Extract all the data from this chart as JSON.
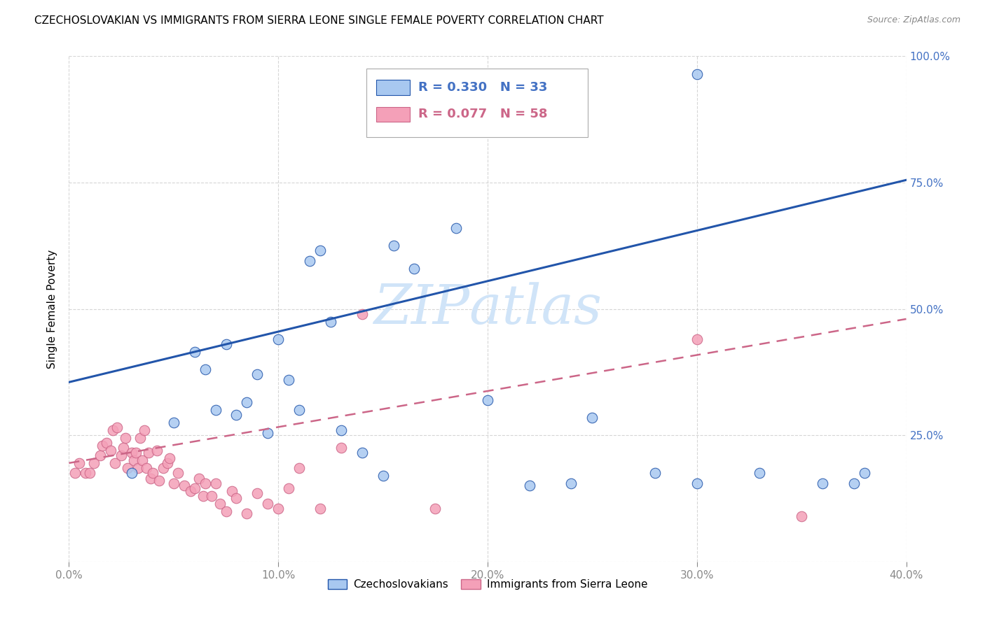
{
  "title": "CZECHOSLOVAKIAN VS IMMIGRANTS FROM SIERRA LEONE SINGLE FEMALE POVERTY CORRELATION CHART",
  "source": "Source: ZipAtlas.com",
  "ylabel": "Single Female Poverty",
  "xlim": [
    0.0,
    0.4
  ],
  "ylim": [
    0.0,
    1.0
  ],
  "xticks": [
    0.0,
    0.1,
    0.2,
    0.3,
    0.4
  ],
  "xtick_labels": [
    "0.0%",
    "10.0%",
    "20.0%",
    "30.0%",
    "40.0%"
  ],
  "yticks": [
    0.0,
    0.25,
    0.5,
    0.75,
    1.0
  ],
  "ytick_labels": [
    "",
    "25.0%",
    "50.0%",
    "75.0%",
    "100.0%"
  ],
  "legend_blue_R": "R = 0.330",
  "legend_blue_N": "N = 33",
  "legend_pink_R": "R = 0.077",
  "legend_pink_N": "N = 58",
  "blue_color": "#A8C8F0",
  "pink_color": "#F4A0B8",
  "line_blue": "#2255AA",
  "line_pink": "#CC6688",
  "watermark_color": "#D0E4F8",
  "legend_labels": [
    "Czechoslovakians",
    "Immigrants from Sierra Leone"
  ],
  "title_fontsize": 11,
  "axis_color": "#4472C4",
  "blue_trendline_x": [
    0.0,
    0.4
  ],
  "blue_trendline_y": [
    0.355,
    0.755
  ],
  "pink_trendline_x": [
    0.0,
    0.4
  ],
  "pink_trendline_y": [
    0.195,
    0.48
  ],
  "blue_x": [
    0.03,
    0.05,
    0.06,
    0.065,
    0.07,
    0.075,
    0.08,
    0.085,
    0.09,
    0.095,
    0.1,
    0.105,
    0.11,
    0.115,
    0.12,
    0.125,
    0.13,
    0.14,
    0.15,
    0.155,
    0.165,
    0.185,
    0.2,
    0.22,
    0.24,
    0.25,
    0.28,
    0.3,
    0.3,
    0.33,
    0.36,
    0.375,
    0.38
  ],
  "blue_y": [
    0.175,
    0.275,
    0.415,
    0.38,
    0.3,
    0.43,
    0.29,
    0.315,
    0.37,
    0.255,
    0.44,
    0.36,
    0.3,
    0.595,
    0.615,
    0.475,
    0.26,
    0.215,
    0.17,
    0.625,
    0.58,
    0.66,
    0.32,
    0.15,
    0.155,
    0.285,
    0.175,
    0.965,
    0.155,
    0.175,
    0.155,
    0.155,
    0.175
  ],
  "pink_x": [
    0.003,
    0.005,
    0.008,
    0.01,
    0.012,
    0.015,
    0.016,
    0.018,
    0.02,
    0.021,
    0.022,
    0.023,
    0.025,
    0.026,
    0.027,
    0.028,
    0.03,
    0.031,
    0.032,
    0.033,
    0.034,
    0.035,
    0.036,
    0.037,
    0.038,
    0.039,
    0.04,
    0.042,
    0.043,
    0.045,
    0.047,
    0.048,
    0.05,
    0.052,
    0.055,
    0.058,
    0.06,
    0.062,
    0.064,
    0.065,
    0.068,
    0.07,
    0.072,
    0.075,
    0.078,
    0.08,
    0.085,
    0.09,
    0.095,
    0.1,
    0.105,
    0.11,
    0.12,
    0.13,
    0.14,
    0.175,
    0.3,
    0.35
  ],
  "pink_y": [
    0.175,
    0.195,
    0.175,
    0.175,
    0.195,
    0.21,
    0.23,
    0.235,
    0.22,
    0.26,
    0.195,
    0.265,
    0.21,
    0.225,
    0.245,
    0.185,
    0.215,
    0.2,
    0.215,
    0.185,
    0.245,
    0.2,
    0.26,
    0.185,
    0.215,
    0.165,
    0.175,
    0.22,
    0.16,
    0.185,
    0.195,
    0.205,
    0.155,
    0.175,
    0.15,
    0.14,
    0.145,
    0.165,
    0.13,
    0.155,
    0.13,
    0.155,
    0.115,
    0.1,
    0.14,
    0.125,
    0.095,
    0.135,
    0.115,
    0.105,
    0.145,
    0.185,
    0.105,
    0.225,
    0.49,
    0.105,
    0.44,
    0.09
  ]
}
